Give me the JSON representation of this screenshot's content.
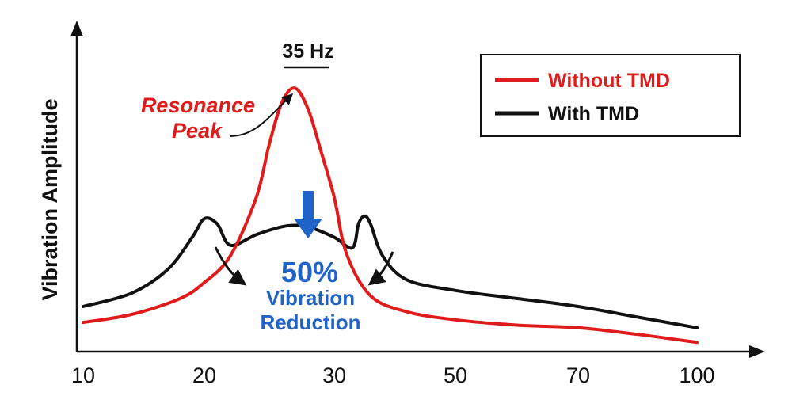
{
  "chart_data": {
    "type": "line",
    "ylabel": "Vibration Amplitude",
    "x_ticks": [
      "10",
      "20",
      "30",
      "50",
      "70",
      "100"
    ],
    "legend_position": "top-right",
    "grid": false,
    "series": [
      {
        "name": "Without TMD",
        "color": "#e01b1b",
        "x": [
          10,
          14,
          18,
          20,
          22,
          24,
          25,
          26,
          27,
          28,
          29,
          30,
          32,
          36,
          42,
          50,
          60,
          70,
          85,
          100
        ],
        "y": [
          0.08,
          0.11,
          0.17,
          0.23,
          0.33,
          0.55,
          0.75,
          0.91,
          0.96,
          0.88,
          0.72,
          0.55,
          0.34,
          0.18,
          0.12,
          0.09,
          0.07,
          0.06,
          0.035,
          0.005
        ]
      },
      {
        "name": "With TMD",
        "color": "#111111",
        "x": [
          10,
          14,
          17,
          19,
          20,
          21,
          22,
          24,
          26,
          27,
          28,
          30,
          33,
          34,
          35,
          36,
          38,
          42,
          50,
          60,
          70,
          85,
          100
        ],
        "y": [
          0.14,
          0.19,
          0.28,
          0.4,
          0.47,
          0.45,
          0.37,
          0.41,
          0.44,
          0.445,
          0.44,
          0.4,
          0.36,
          0.45,
          0.48,
          0.45,
          0.33,
          0.24,
          0.2,
          0.17,
          0.14,
          0.1,
          0.06
        ]
      }
    ],
    "annotations": {
      "peak_frequency": "35 Hz",
      "resonance_line1": "Resonance",
      "resonance_line2": "Peak",
      "reduction_percent": "50%",
      "reduction_line1": "Vibration",
      "reduction_line2": "Reduction"
    }
  }
}
